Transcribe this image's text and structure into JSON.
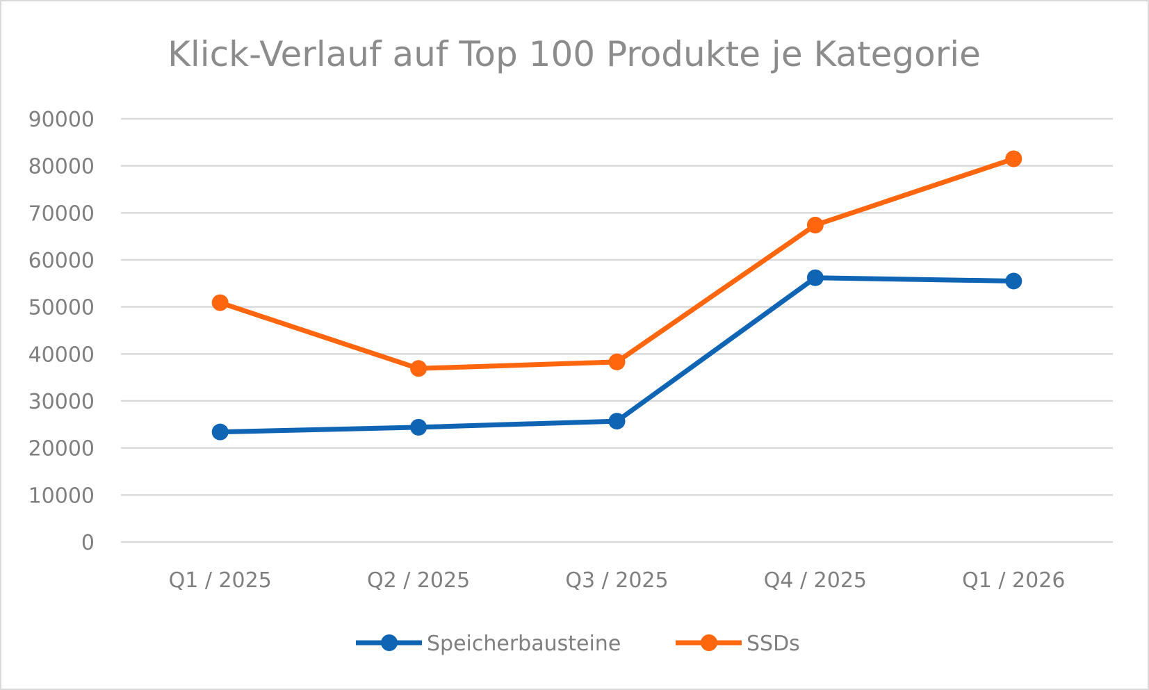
{
  "chart_data": {
    "type": "line",
    "title": "Klick-Verlauf auf Top 100 Produkte je Kategorie",
    "xlabel": "",
    "ylabel": "",
    "categories": [
      "Q1 / 2025",
      "Q2 / 2025",
      "Q3 / 2025",
      "Q4 / 2025",
      "Q1 / 2026"
    ],
    "ylim": [
      0,
      90000
    ],
    "yticks": [
      "0",
      "10000",
      "20000",
      "30000",
      "40000",
      "50000",
      "60000",
      "70000",
      "80000",
      "90000"
    ],
    "grid": true,
    "legend": "bottom",
    "series": [
      {
        "name": "Speicherbausteine",
        "color": "#0f64b4",
        "values": [
          23400,
          24400,
          25700,
          56200,
          55500
        ]
      },
      {
        "name": "SSDs",
        "color": "#ff660d",
        "values": [
          50900,
          36900,
          38300,
          67400,
          81500
        ]
      }
    ]
  }
}
